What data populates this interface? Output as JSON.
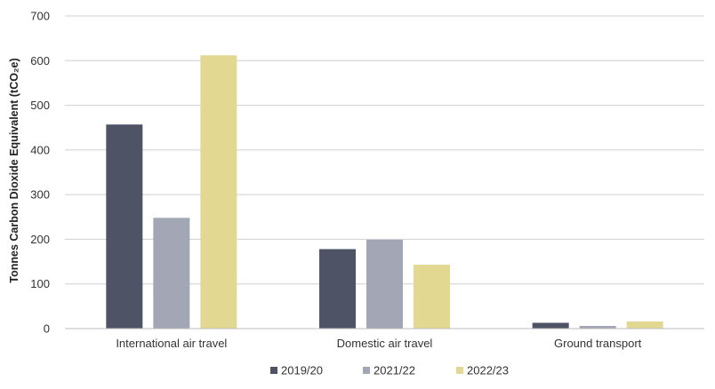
{
  "chart_data": {
    "type": "bar",
    "title": "",
    "xlabel": "",
    "ylabel": "Tonnes Carbon Dioxide Equivalent (tCO₂e)",
    "ylim": [
      0,
      700
    ],
    "yticks": [
      0,
      100,
      200,
      300,
      400,
      500,
      600,
      700
    ],
    "grid": true,
    "legend_position": "bottom",
    "categories": [
      "International air travel",
      "Domestic air travel",
      "Ground transport"
    ],
    "series": [
      {
        "name": "2019/20",
        "color": "#4f5366",
        "values": [
          457,
          178,
          13
        ]
      },
      {
        "name": "2021/22",
        "color": "#a3a6b4",
        "values": [
          248,
          199,
          6
        ]
      },
      {
        "name": "2022/23",
        "color": "#e2d892",
        "values": [
          612,
          143,
          16
        ]
      }
    ]
  }
}
